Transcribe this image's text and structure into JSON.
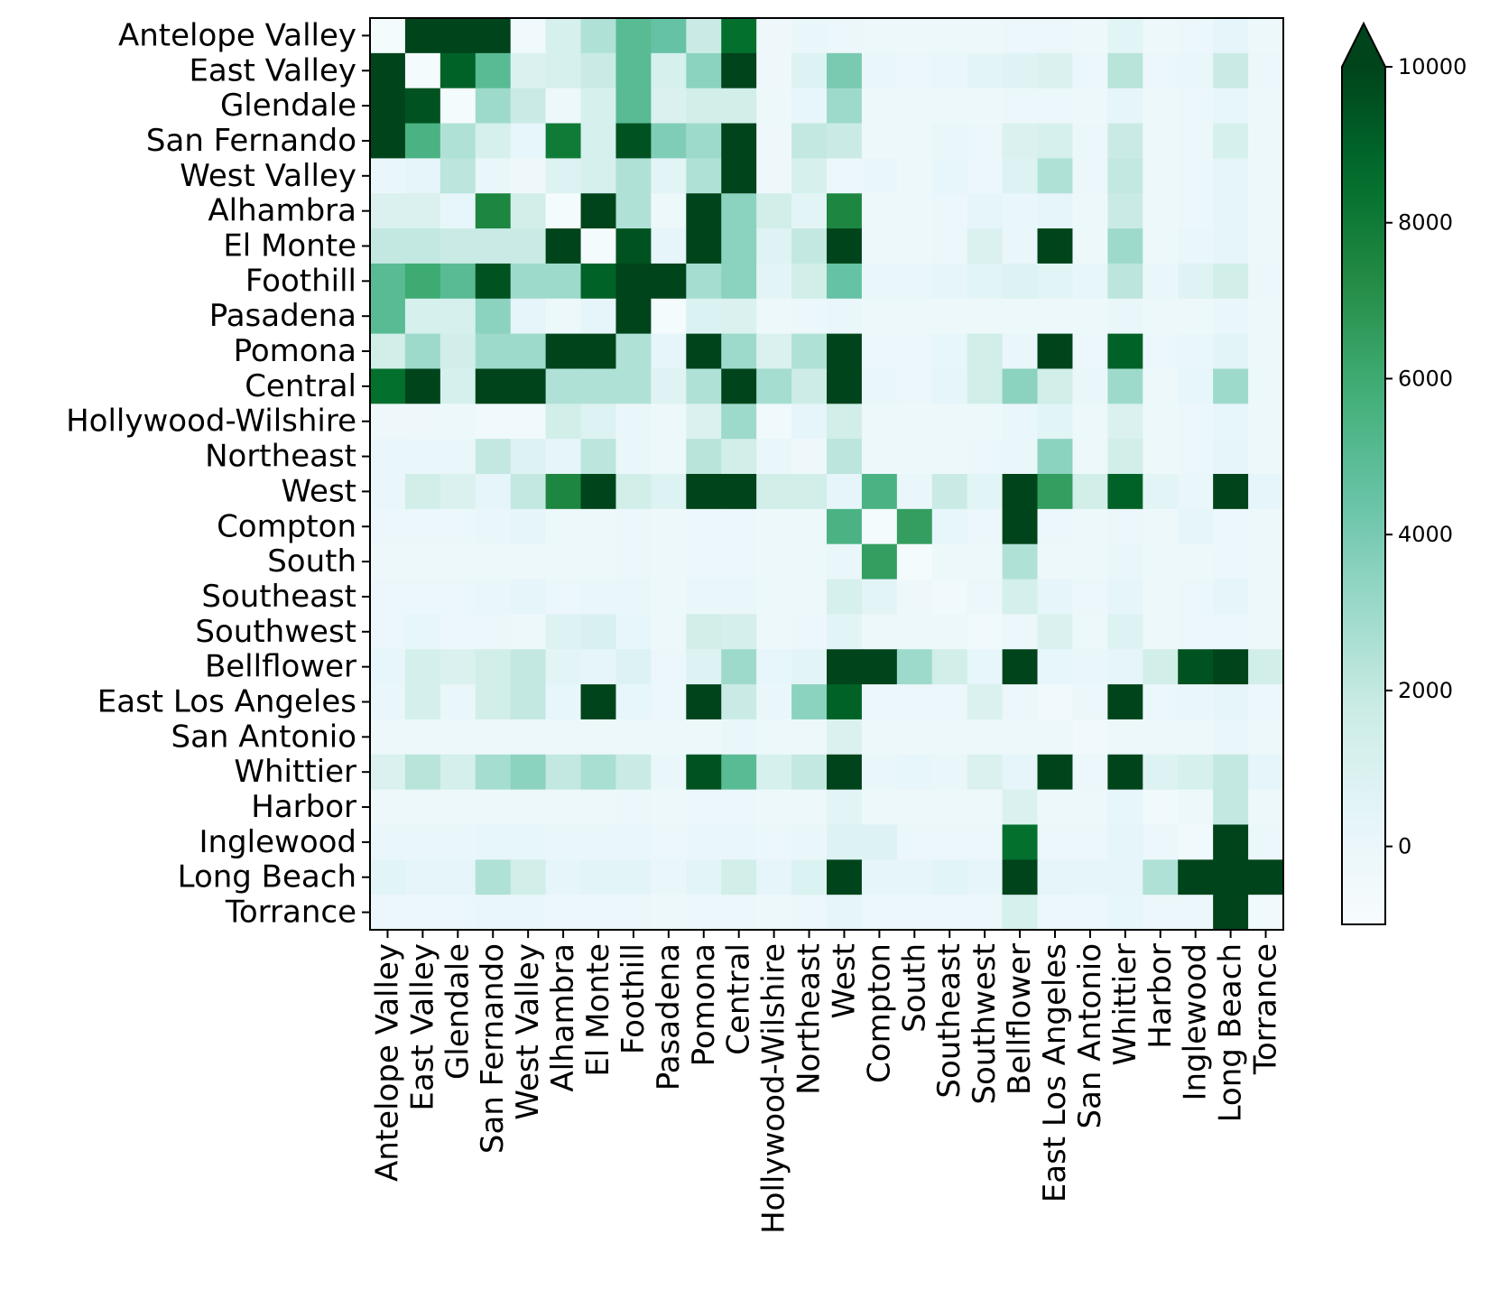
{
  "chart_data": {
    "type": "heatmap",
    "labels": [
      "Antelope Valley",
      "East Valley",
      "Glendale",
      "San Fernando",
      "West Valley",
      "Alhambra",
      "El Monte",
      "Foothill",
      "Pasadena",
      "Pomona",
      "Central",
      "Hollywood-Wilshire",
      "Northeast",
      "West",
      "Compton",
      "South",
      "Southeast",
      "Southwest",
      "Bellflower",
      "East Los Angeles",
      "San Antonio",
      "Whittier",
      "Harbor",
      "Inglewood",
      "Long Beach",
      "Torrance"
    ],
    "matrix": [
      [
        -800,
        10000,
        10000,
        10000,
        -500,
        1200,
        2500,
        5000,
        4500,
        1800,
        8500,
        -300,
        0,
        -100,
        -200,
        -200,
        -200,
        -200,
        -100,
        -100,
        -200,
        600,
        -200,
        -100,
        300,
        -200
      ],
      [
        10000,
        -800,
        9000,
        5000,
        1000,
        1200,
        1800,
        5000,
        1200,
        3500,
        10000,
        -300,
        800,
        4000,
        0,
        -100,
        0,
        500,
        700,
        1000,
        -100,
        2300,
        -100,
        100,
        1800,
        -100
      ],
      [
        10000,
        9500,
        -800,
        3000,
        1800,
        -200,
        1200,
        5000,
        1000,
        1500,
        1500,
        -200,
        200,
        3000,
        -200,
        -200,
        -200,
        -200,
        -100,
        -100,
        -200,
        300,
        -200,
        -100,
        200,
        -200
      ],
      [
        10000,
        5500,
        2500,
        1200,
        200,
        8000,
        1200,
        9500,
        3800,
        3000,
        10000,
        -300,
        2000,
        1800,
        -200,
        -200,
        0,
        -100,
        1000,
        1200,
        -100,
        1800,
        -200,
        -100,
        1200,
        -200
      ],
      [
        0,
        300,
        2200,
        0,
        -300,
        800,
        1200,
        2500,
        500,
        2500,
        10000,
        -300,
        1200,
        -100,
        100,
        -200,
        200,
        -100,
        800,
        2500,
        -100,
        2000,
        -200,
        -100,
        400,
        -200
      ],
      [
        1000,
        1000,
        200,
        7500,
        1500,
        -800,
        10000,
        2500,
        -200,
        10000,
        3500,
        1500,
        500,
        7500,
        -200,
        -200,
        -100,
        300,
        100,
        300,
        -200,
        1800,
        -200,
        -100,
        300,
        -200
      ],
      [
        2000,
        2000,
        1800,
        1800,
        1800,
        10000,
        -800,
        9500,
        400,
        10000,
        3500,
        700,
        2000,
        10000,
        -200,
        -200,
        -100,
        1000,
        100,
        10000,
        -200,
        3000,
        -200,
        100,
        300,
        -200
      ],
      [
        5000,
        6000,
        5000,
        9500,
        3000,
        3000,
        9000,
        10000,
        10000,
        2800,
        3500,
        500,
        1500,
        4500,
        0,
        100,
        300,
        600,
        800,
        600,
        200,
        2200,
        0,
        700,
        1500,
        -100
      ],
      [
        5000,
        1200,
        1200,
        3500,
        400,
        -200,
        300,
        10000,
        -800,
        900,
        1000,
        -200,
        -100,
        0,
        -200,
        -200,
        -200,
        -200,
        -200,
        -200,
        -200,
        0,
        -200,
        -200,
        0,
        -200
      ],
      [
        1500,
        3000,
        1400,
        3000,
        3000,
        10000,
        10000,
        2500,
        400,
        10000,
        3000,
        1000,
        2500,
        10000,
        -100,
        -100,
        200,
        1500,
        100,
        10000,
        -100,
        9000,
        -100,
        100,
        500,
        -200
      ],
      [
        8500,
        10000,
        1200,
        10000,
        10000,
        2500,
        2500,
        2500,
        700,
        2500,
        10000,
        2800,
        1700,
        10000,
        100,
        -100,
        300,
        1500,
        3500,
        1500,
        0,
        3000,
        -200,
        200,
        3000,
        -200
      ],
      [
        -300,
        -300,
        -200,
        -500,
        -500,
        1500,
        800,
        0,
        -200,
        1000,
        3000,
        -500,
        300,
        1500,
        -200,
        -200,
        -200,
        -200,
        100,
        600,
        -200,
        1000,
        -200,
        -100,
        200,
        -200
      ],
      [
        100,
        0,
        0,
        2000,
        800,
        400,
        2200,
        0,
        -200,
        2300,
        1500,
        0,
        -300,
        2200,
        -200,
        -200,
        -200,
        -100,
        0,
        3500,
        -200,
        1500,
        -200,
        -100,
        300,
        -200
      ],
      [
        0,
        1500,
        1000,
        300,
        2000,
        7500,
        10000,
        1500,
        800,
        10000,
        10000,
        1500,
        1500,
        400,
        5500,
        100,
        1800,
        600,
        10000,
        6500,
        1500,
        9000,
        500,
        0,
        10000,
        300
      ],
      [
        -100,
        -100,
        -100,
        0,
        300,
        -200,
        -200,
        -100,
        -200,
        -100,
        -100,
        -200,
        -200,
        5500,
        -800,
        6500,
        200,
        -100,
        10000,
        -100,
        -200,
        -100,
        -200,
        300,
        -100,
        -200
      ],
      [
        -200,
        -200,
        -200,
        -200,
        -200,
        -200,
        -200,
        -100,
        -200,
        -100,
        -100,
        -200,
        -200,
        0,
        6500,
        -800,
        -200,
        -200,
        2500,
        -200,
        -200,
        0,
        -200,
        -200,
        -100,
        -200
      ],
      [
        -100,
        -100,
        -100,
        100,
        300,
        -100,
        100,
        0,
        -200,
        100,
        0,
        -200,
        -200,
        1200,
        500,
        -300,
        -500,
        -100,
        1300,
        300,
        -100,
        300,
        -200,
        -100,
        400,
        -200
      ],
      [
        -100,
        200,
        -100,
        -100,
        -200,
        800,
        1100,
        200,
        -200,
        1500,
        1300,
        -200,
        -100,
        600,
        -200,
        -200,
        -200,
        -500,
        -100,
        1000,
        -200,
        800,
        -200,
        -100,
        -100,
        -200
      ],
      [
        200,
        1300,
        1000,
        1500,
        2000,
        500,
        300,
        800,
        -100,
        800,
        3000,
        200,
        500,
        10000,
        10000,
        3000,
        1500,
        200,
        10000,
        200,
        100,
        300,
        1500,
        9500,
        10000,
        1500
      ],
      [
        0,
        1300,
        0,
        1500,
        2000,
        200,
        10000,
        200,
        -100,
        10000,
        1800,
        0,
        3500,
        9000,
        -100,
        -100,
        -100,
        1000,
        -100,
        -500,
        -100,
        10000,
        -100,
        0,
        300,
        -100
      ],
      [
        -200,
        -200,
        -200,
        -200,
        -200,
        -200,
        -200,
        -200,
        -200,
        -200,
        0,
        -200,
        -200,
        1000,
        -200,
        -200,
        -200,
        -200,
        -200,
        -200,
        -500,
        -200,
        -200,
        -200,
        100,
        -200
      ],
      [
        1000,
        2300,
        1300,
        2800,
        3500,
        2000,
        2700,
        1800,
        0,
        9500,
        5000,
        1200,
        2000,
        10000,
        0,
        200,
        0,
        1000,
        300,
        10000,
        -100,
        10000,
        800,
        1200,
        2000,
        300
      ],
      [
        -200,
        -200,
        -200,
        -200,
        -200,
        -200,
        -200,
        -100,
        -200,
        -100,
        -100,
        -200,
        -200,
        500,
        -200,
        -200,
        -200,
        -200,
        1000,
        -200,
        -200,
        200,
        -500,
        -200,
        2000,
        -200
      ],
      [
        0,
        0,
        0,
        200,
        200,
        0,
        0,
        0,
        -100,
        0,
        0,
        -100,
        0,
        800,
        800,
        -100,
        -100,
        -100,
        8500,
        -100,
        -100,
        400,
        -100,
        -500,
        10000,
        -100
      ],
      [
        600,
        400,
        400,
        2500,
        1500,
        300,
        500,
        500,
        0,
        500,
        1500,
        300,
        900,
        10000,
        300,
        300,
        600,
        300,
        10000,
        400,
        300,
        400,
        2500,
        10000,
        10000,
        10000
      ],
      [
        -100,
        -100,
        -100,
        0,
        0,
        -100,
        -100,
        -100,
        -200,
        -100,
        -100,
        -200,
        -100,
        400,
        -100,
        -100,
        -100,
        -100,
        1200,
        -100,
        -100,
        200,
        -100,
        -100,
        10000,
        -500
      ]
    ],
    "colorbar": {
      "colormap": "BuGn",
      "vmin": -1000,
      "vmax": 10000,
      "extend": "max",
      "ticks": [
        "10000",
        "8000",
        "6000",
        "4000",
        "2000",
        "0"
      ],
      "tick_values": [
        10000,
        8000,
        6000,
        4000,
        2000,
        0
      ]
    },
    "title": "",
    "xlabel": "",
    "ylabel": "",
    "grid": false
  }
}
